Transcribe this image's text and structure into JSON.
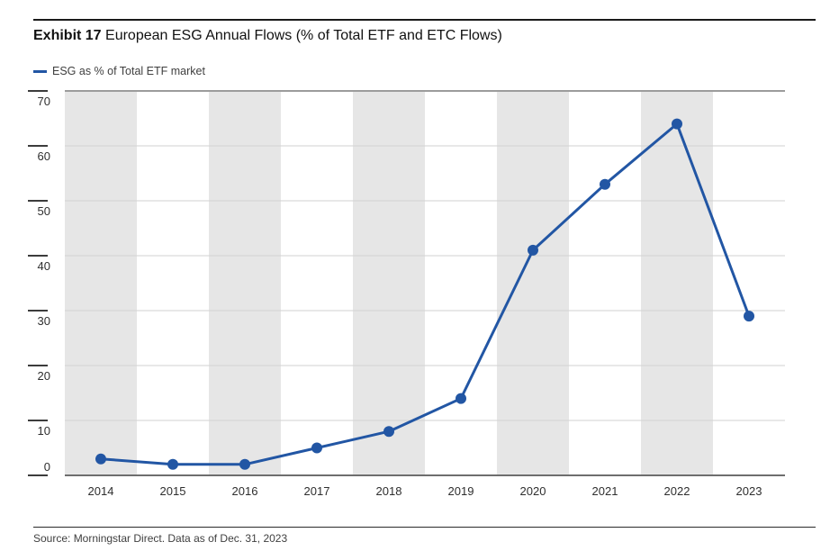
{
  "header": {
    "exhibit_label": "Exhibit 17",
    "title": "European ESG Annual Flows (% of Total ETF and ETC Flows)"
  },
  "legend": {
    "label": "ESG as % of Total ETF market"
  },
  "footer": {
    "source": "Source: Morningstar Direct. Data as of Dec. 31, 2023"
  },
  "colors": {
    "line": "#2256a4",
    "marker": "#2256a4",
    "band": "#e6e6e6",
    "gridline": "#d2d2d2",
    "plot_top_border": "#9c9c9c",
    "axis_line": "#6e6e6e",
    "tick": "#3c3c3c",
    "axis_label": "#2e2e2e",
    "rule": "#1a1a1a"
  },
  "chart_data": {
    "type": "line",
    "title": "European ESG Annual Flows (% of Total ETF and ETC Flows)",
    "categories": [
      "2014",
      "2015",
      "2016",
      "2017",
      "2018",
      "2019",
      "2020",
      "2021",
      "2022",
      "2023"
    ],
    "series": [
      {
        "name": "ESG as % of Total ETF market",
        "values": [
          3,
          2,
          2,
          5,
          8,
          14,
          41,
          53,
          64,
          29
        ]
      }
    ],
    "xlabel": "",
    "ylabel": "",
    "ylim": [
      0,
      70
    ],
    "yticks": [
      0,
      10,
      20,
      30,
      40,
      50,
      60,
      70
    ],
    "grid": "horizontal",
    "plot_bands": "alternating vertical category stripes starting gray at 2014",
    "legend_position": "top-left",
    "marker": "circle"
  }
}
